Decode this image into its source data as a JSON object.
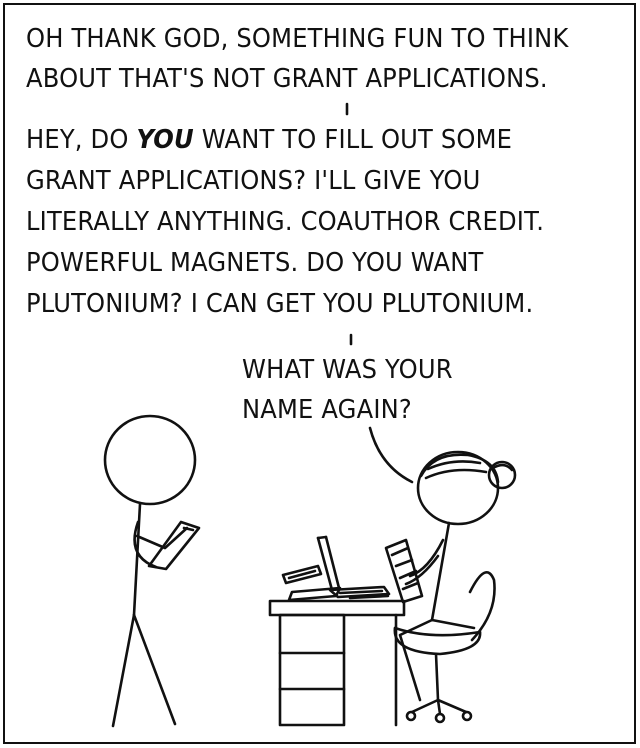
{
  "comic": {
    "line_a": "OH THANK GOD, SOMETHING FUN TO THINK\nABOUT THAT'S NOT GRANT APPLICATIONS.",
    "line_b_1": "HEY, DO ",
    "line_b_emphasis": "YOU",
    "line_b_2": " WANT TO FILL OUT SOME\nGRANT APPLICATIONS? I'LL GIVE YOU\nLITERALLY ANYTHING. COAUTHOR CREDIT.\nPOWERFUL MAGNETS. DO YOU WANT\nPLUTONIUM? I CAN GET YOU PLUTONIUM.",
    "line_c": "WHAT WAS YOUR\nNAME AGAIN?"
  },
  "colors": {
    "ink": "#111111",
    "background": "#ffffff"
  },
  "figures": [
    "stick-figure-man-icon",
    "stick-figure-woman-icon",
    "desk-icon",
    "laptop-icon",
    "chair-icon",
    "phone-icon",
    "papers-icon"
  ]
}
